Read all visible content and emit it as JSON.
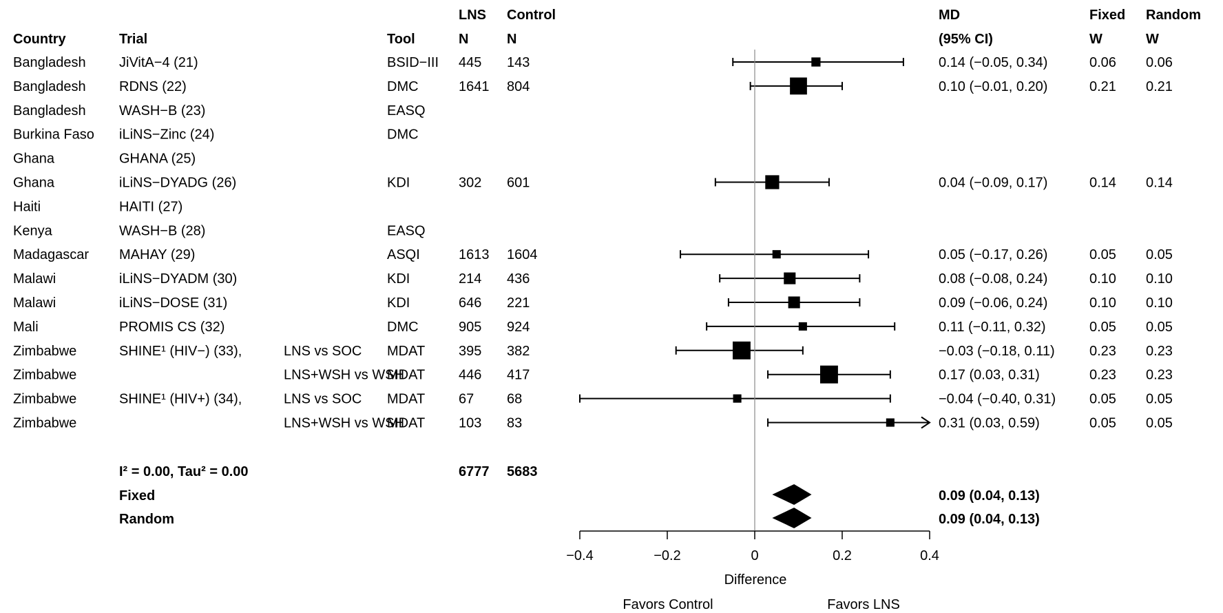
{
  "chart_data": {
    "type": "forest",
    "headers": {
      "country": "Country",
      "trial": "Trial",
      "tool": "Tool",
      "lns_top": "LNS",
      "lns_bottom": "N",
      "control_top": "Control",
      "control_bottom": "N",
      "md_top": "MD",
      "md_bottom": "(95% CI)",
      "fixed_top": "Fixed",
      "fixed_bottom": "W",
      "random_top": "Random",
      "random_bottom": "W"
    },
    "rows": [
      {
        "country": "Bangladesh",
        "trial": "JiVitA−4 (21)",
        "comparison": "",
        "tool": "BSID−III",
        "lns_n": "445",
        "control_n": "143",
        "md": 0.14,
        "lo": -0.05,
        "hi": 0.34,
        "ci_text": "0.14 (−0.05, 0.34)",
        "w_fixed": "0.06",
        "w_random": "0.06",
        "weight": 0.06,
        "arrow": false
      },
      {
        "country": "Bangladesh",
        "trial": "RDNS (22)",
        "comparison": "",
        "tool": "DMC",
        "lns_n": "1641",
        "control_n": "804",
        "md": 0.1,
        "lo": -0.01,
        "hi": 0.2,
        "ci_text": "0.10 (−0.01, 0.20)",
        "w_fixed": "0.21",
        "w_random": "0.21",
        "weight": 0.21,
        "arrow": false
      },
      {
        "country": "Bangladesh",
        "trial": "WASH−B (23)",
        "comparison": "",
        "tool": "EASQ",
        "lns_n": "",
        "control_n": "",
        "md": null,
        "lo": null,
        "hi": null,
        "ci_text": "",
        "w_fixed": "",
        "w_random": "",
        "weight": 0,
        "arrow": false
      },
      {
        "country": "Burkina Faso",
        "trial": "iLiNS−Zinc (24)",
        "comparison": "",
        "tool": "DMC",
        "lns_n": "",
        "control_n": "",
        "md": null,
        "lo": null,
        "hi": null,
        "ci_text": "",
        "w_fixed": "",
        "w_random": "",
        "weight": 0,
        "arrow": false
      },
      {
        "country": "Ghana",
        "trial": "GHANA (25)",
        "comparison": "",
        "tool": "",
        "lns_n": "",
        "control_n": "",
        "md": null,
        "lo": null,
        "hi": null,
        "ci_text": "",
        "w_fixed": "",
        "w_random": "",
        "weight": 0,
        "arrow": false
      },
      {
        "country": "Ghana",
        "trial": "iLiNS−DYADG (26)",
        "comparison": "",
        "tool": "KDI",
        "lns_n": "302",
        "control_n": "601",
        "md": 0.04,
        "lo": -0.09,
        "hi": 0.17,
        "ci_text": "0.04 (−0.09, 0.17)",
        "w_fixed": "0.14",
        "w_random": "0.14",
        "weight": 0.14,
        "arrow": false
      },
      {
        "country": "Haiti",
        "trial": "HAITI (27)",
        "comparison": "",
        "tool": "",
        "lns_n": "",
        "control_n": "",
        "md": null,
        "lo": null,
        "hi": null,
        "ci_text": "",
        "w_fixed": "",
        "w_random": "",
        "weight": 0,
        "arrow": false
      },
      {
        "country": "Kenya",
        "trial": "WASH−B (28)",
        "comparison": "",
        "tool": "EASQ",
        "lns_n": "",
        "control_n": "",
        "md": null,
        "lo": null,
        "hi": null,
        "ci_text": "",
        "w_fixed": "",
        "w_random": "",
        "weight": 0,
        "arrow": false
      },
      {
        "country": "Madagascar",
        "trial": "MAHAY (29)",
        "comparison": "",
        "tool": "ASQI",
        "lns_n": "1613",
        "control_n": "1604",
        "md": 0.05,
        "lo": -0.17,
        "hi": 0.26,
        "ci_text": "0.05 (−0.17, 0.26)",
        "w_fixed": "0.05",
        "w_random": "0.05",
        "weight": 0.05,
        "arrow": false
      },
      {
        "country": "Malawi",
        "trial": "iLiNS−DYADM (30)",
        "comparison": "",
        "tool": "KDI",
        "lns_n": "214",
        "control_n": "436",
        "md": 0.08,
        "lo": -0.08,
        "hi": 0.24,
        "ci_text": "0.08 (−0.08, 0.24)",
        "w_fixed": "0.10",
        "w_random": "0.10",
        "weight": 0.1,
        "arrow": false
      },
      {
        "country": "Malawi",
        "trial": "iLiNS−DOSE (31)",
        "comparison": "",
        "tool": "KDI",
        "lns_n": "646",
        "control_n": "221",
        "md": 0.09,
        "lo": -0.06,
        "hi": 0.24,
        "ci_text": "0.09 (−0.06, 0.24)",
        "w_fixed": "0.10",
        "w_random": "0.10",
        "weight": 0.1,
        "arrow": false
      },
      {
        "country": "Mali",
        "trial": "PROMIS CS (32)",
        "comparison": "",
        "tool": "DMC",
        "lns_n": "905",
        "control_n": "924",
        "md": 0.11,
        "lo": -0.11,
        "hi": 0.32,
        "ci_text": "0.11 (−0.11, 0.32)",
        "w_fixed": "0.05",
        "w_random": "0.05",
        "weight": 0.05,
        "arrow": false
      },
      {
        "country": "Zimbabwe",
        "trial": "SHINE¹ (HIV−) (33),",
        "comparison": "LNS vs SOC",
        "tool": "MDAT",
        "lns_n": "395",
        "control_n": "382",
        "md": -0.03,
        "lo": -0.18,
        "hi": 0.11,
        "ci_text": "−0.03 (−0.18, 0.11)",
        "w_fixed": "0.23",
        "w_random": "0.23",
        "weight": 0.23,
        "arrow": false
      },
      {
        "country": "Zimbabwe",
        "trial": "",
        "comparison": "LNS+WSH vs WSH",
        "tool": "MDAT",
        "lns_n": "446",
        "control_n": "417",
        "md": 0.17,
        "lo": 0.03,
        "hi": 0.31,
        "ci_text": "0.17 (0.03, 0.31)",
        "w_fixed": "0.23",
        "w_random": "0.23",
        "weight": 0.23,
        "arrow": false
      },
      {
        "country": "Zimbabwe",
        "trial": "SHINE¹ (HIV+) (34),",
        "comparison": "LNS vs SOC",
        "tool": "MDAT",
        "lns_n": "67",
        "control_n": "68",
        "md": -0.04,
        "lo": -0.4,
        "hi": 0.31,
        "ci_text": "−0.04 (−0.40, 0.31)",
        "w_fixed": "0.05",
        "w_random": "0.05",
        "weight": 0.05,
        "arrow": false
      },
      {
        "country": "Zimbabwe",
        "trial": "",
        "comparison": "LNS+WSH vs WSH",
        "tool": "MDAT",
        "lns_n": "103",
        "control_n": "83",
        "md": 0.31,
        "lo": 0.03,
        "hi": 0.59,
        "ci_text": "0.31 (0.03, 0.59)",
        "w_fixed": "0.05",
        "w_random": "0.05",
        "weight": 0.05,
        "arrow": true
      }
    ],
    "heterogeneity": "I² = 0.00, Tau² = 0.00",
    "total_lns_n": "6777",
    "total_control_n": "5683",
    "summaries": [
      {
        "label": "Fixed",
        "md": 0.09,
        "lo": 0.04,
        "hi": 0.13,
        "ci_text": "0.09 (0.04, 0.13)"
      },
      {
        "label": "Random",
        "md": 0.09,
        "lo": 0.04,
        "hi": 0.13,
        "ci_text": "0.09 (0.04, 0.13)"
      }
    ],
    "xlim": [
      -0.4,
      0.4
    ],
    "ticks": [
      -0.4,
      -0.2,
      0,
      0.2,
      0.4
    ],
    "tick_labels": [
      "−0.4",
      "−0.2",
      "0",
      "0.2",
      "0.4"
    ],
    "xlabel": "Difference",
    "favors_left": "Favors Control",
    "favors_right": "Favors LNS",
    "reference_line": 0
  }
}
